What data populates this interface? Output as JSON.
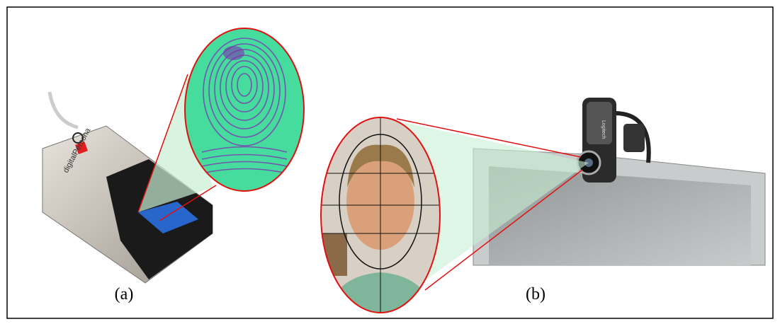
{
  "figure": {
    "device_brand": "digitalPersona",
    "camera_brand": "Logitech",
    "labels": [
      "(a)",
      "(b)"
    ]
  }
}
